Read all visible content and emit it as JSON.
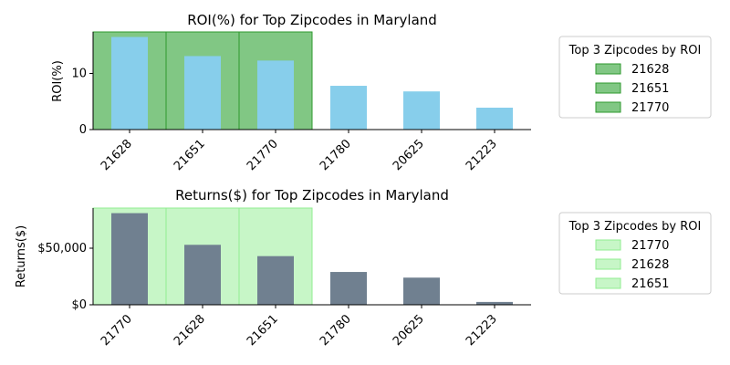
{
  "chart_data": [
    {
      "type": "bar",
      "title": "ROI(%) for Top Zipcodes in Maryland",
      "xlabel": "",
      "ylabel": "ROI(%)",
      "categories": [
        "21628",
        "21651",
        "21770",
        "21780",
        "20625",
        "21223"
      ],
      "values": [
        16.5,
        13.1,
        12.3,
        7.8,
        6.8,
        3.9
      ],
      "ylim": [
        0,
        17.4
      ],
      "yticks": [
        0,
        10
      ],
      "ytick_labels": [
        "0",
        "10"
      ],
      "bar_color": "#87ceeb",
      "highlight": {
        "count": 3,
        "color": "#4caf50",
        "edge_color": "#2e9a2e"
      },
      "legend": {
        "title": "Top 3 Zipcodes by ROI",
        "entries": [
          "21628",
          "21651",
          "21770"
        ],
        "position": "right"
      }
    },
    {
      "type": "bar",
      "title": "Returns($) for Top Zipcodes in Maryland",
      "xlabel": "",
      "ylabel": "Returns($)",
      "categories": [
        "21770",
        "21628",
        "21651",
        "21780",
        "20625",
        "21223"
      ],
      "values": [
        81000,
        53000,
        43000,
        29000,
        24000,
        2500
      ],
      "ylim": [
        0,
        85500
      ],
      "yticks": [
        0,
        50000
      ],
      "ytick_labels": [
        "$0",
        "$50,000"
      ],
      "bar_color": "#708090",
      "highlight": {
        "count": 3,
        "color": "#90ee90",
        "edge_color": "#90ee90"
      },
      "legend": {
        "title": "Top 3 Zipcodes by ROI",
        "entries": [
          "21770",
          "21628",
          "21651"
        ],
        "position": "right"
      }
    }
  ]
}
